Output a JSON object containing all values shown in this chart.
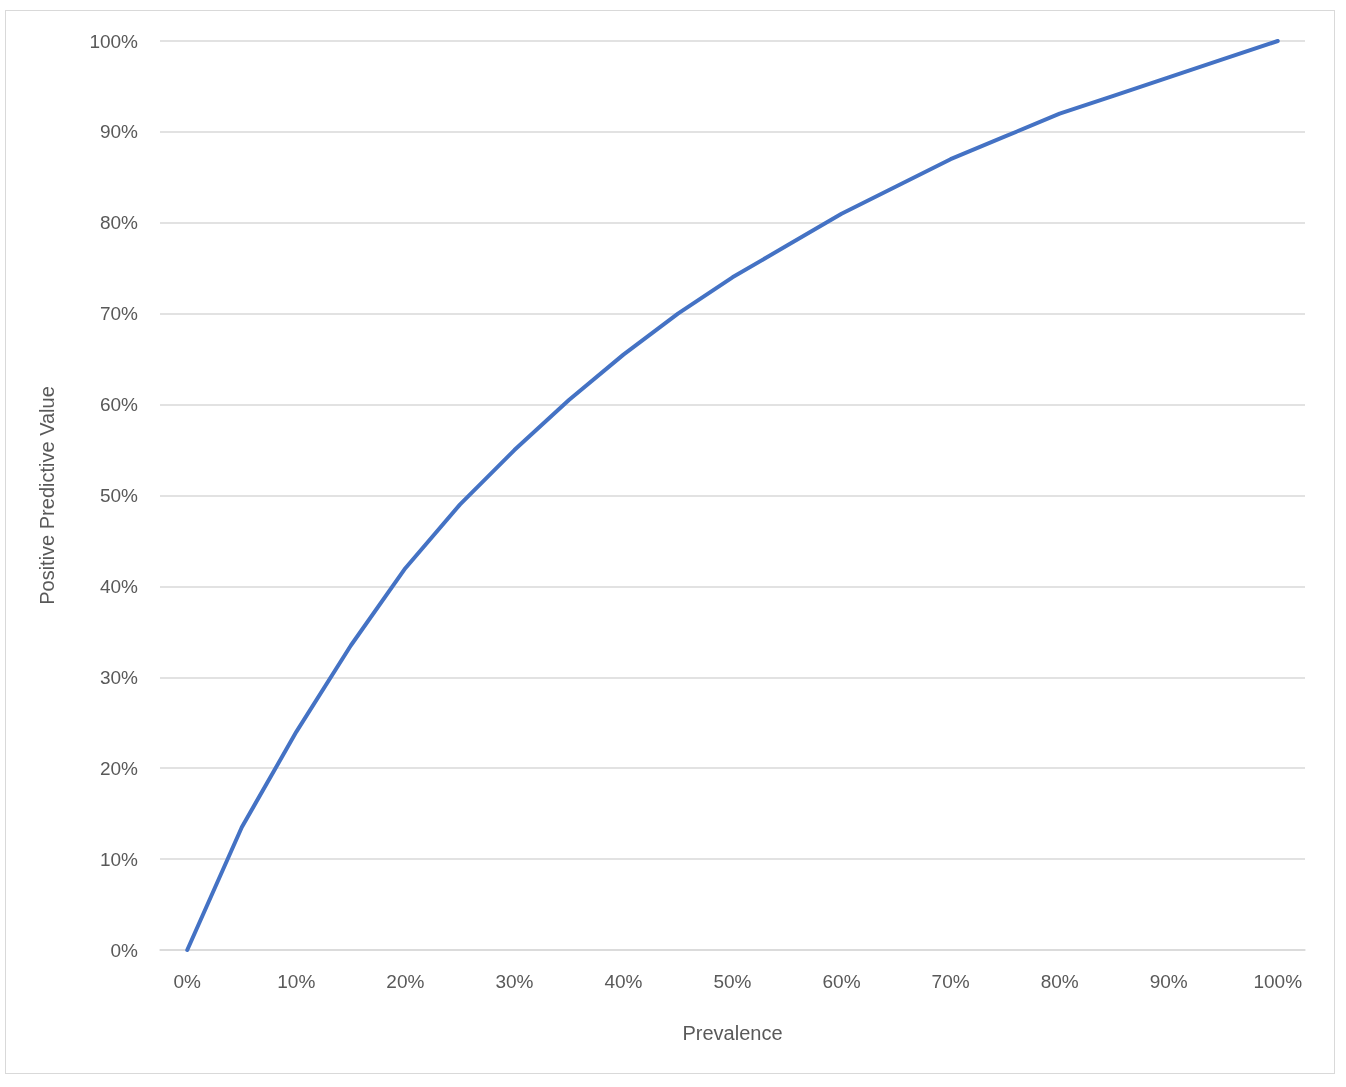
{
  "chart_data": {
    "type": "line",
    "xlabel": "Prevalence",
    "ylabel": "Positive Predictive Value",
    "categories": [
      "0%",
      null,
      "10%",
      null,
      "20%",
      null,
      "30%",
      null,
      "40%",
      null,
      "50%",
      null,
      "60%",
      null,
      "70%",
      null,
      "80%",
      null,
      "90%",
      null,
      "100%"
    ],
    "series": [
      {
        "color": "#4472c4",
        "values": [
          0,
          13.5,
          24,
          33.5,
          42,
          49,
          55,
          60.5,
          65.5,
          70,
          74,
          77.5,
          81,
          84,
          87,
          89.5,
          92,
          94,
          96,
          98,
          100
        ]
      }
    ],
    "ylim": [
      0,
      100
    ],
    "yticks": [
      {
        "value": 0,
        "label": "0%"
      },
      {
        "value": 10,
        "label": "10%"
      },
      {
        "value": 20,
        "label": "20%"
      },
      {
        "value": 30,
        "label": "30%"
      },
      {
        "value": 40,
        "label": "40%"
      },
      {
        "value": 50,
        "label": "50%"
      },
      {
        "value": 60,
        "label": "60%"
      },
      {
        "value": 70,
        "label": "70%"
      },
      {
        "value": 80,
        "label": "80%"
      },
      {
        "value": 90,
        "label": "90%"
      },
      {
        "value": 100,
        "label": "100%"
      }
    ],
    "grid": "y",
    "marker": "none",
    "line_style": "solid"
  }
}
